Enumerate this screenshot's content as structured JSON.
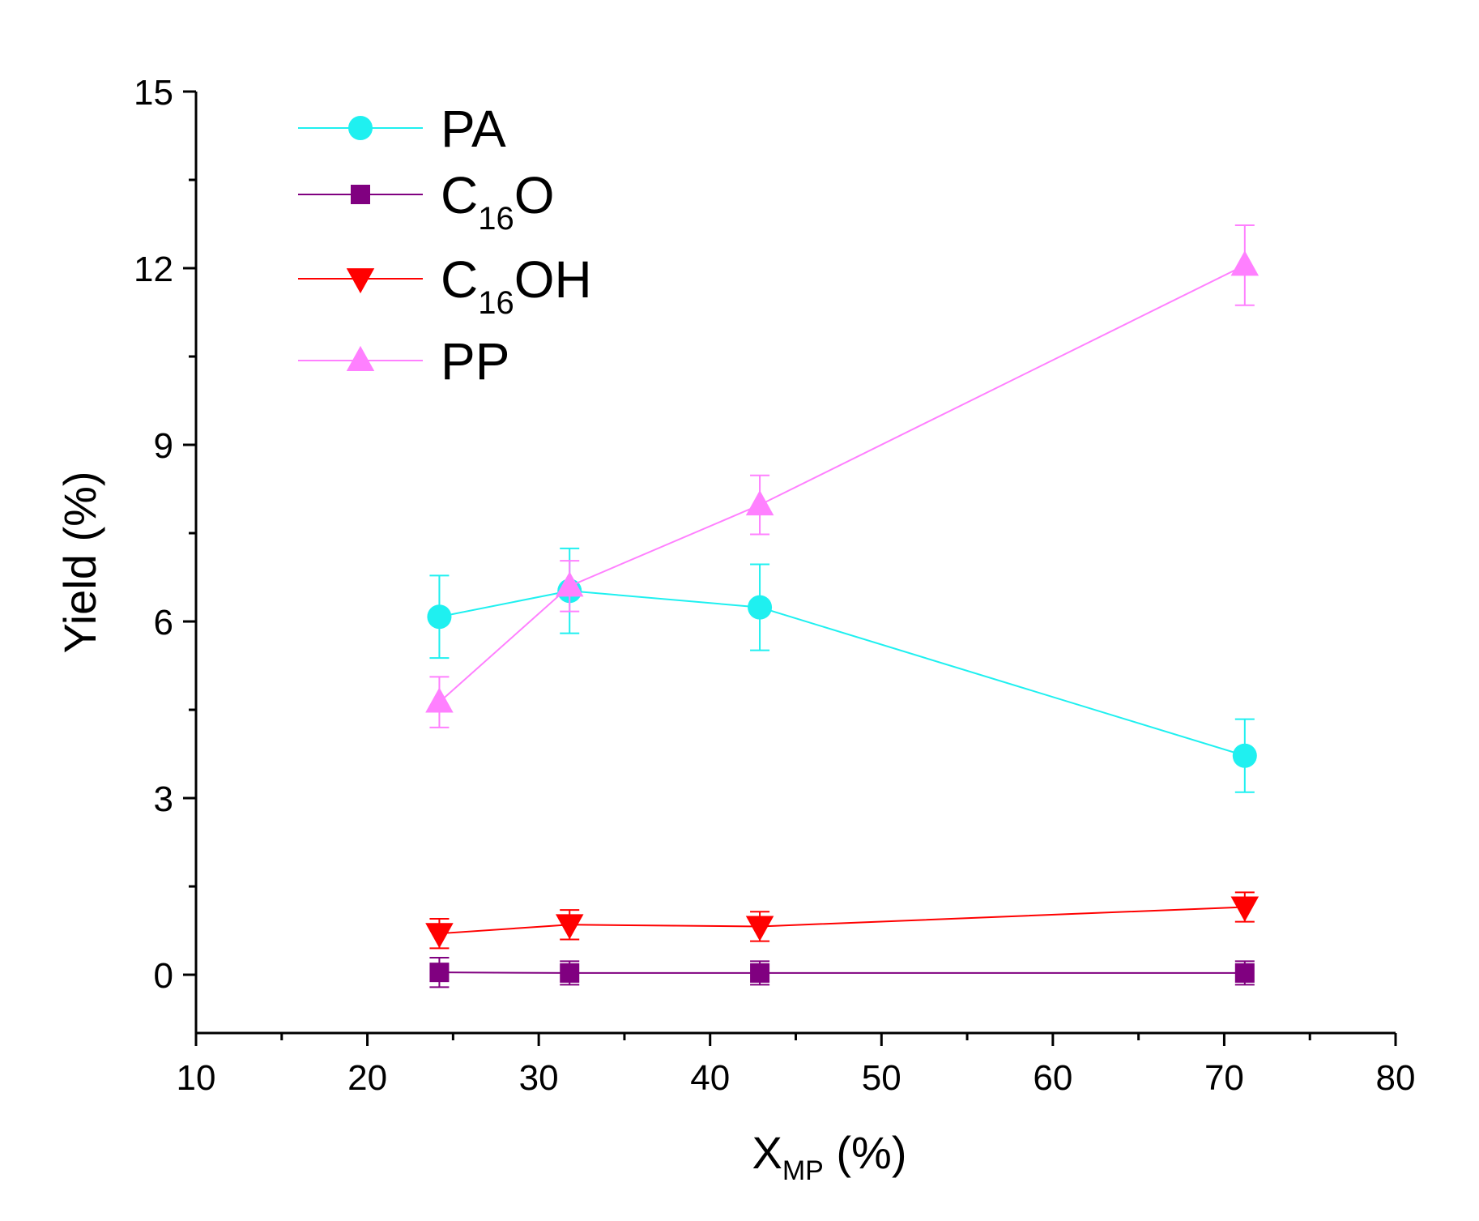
{
  "chart_data": {
    "type": "line",
    "xlabel": {
      "main": "X",
      "sub": "MP",
      "suffix": " (%)"
    },
    "ylabel": "Yield (%)",
    "xlim": [
      10,
      80
    ],
    "ylim": [
      -0.99,
      15
    ],
    "x_ticks": [
      10,
      20,
      30,
      40,
      50,
      60,
      70,
      80
    ],
    "y_ticks": [
      0,
      3,
      6,
      9,
      12,
      15
    ],
    "x_minor_step": 5,
    "y_minor_step": 1.5,
    "grid": false,
    "legend_position": "top-left",
    "series": [
      {
        "name": "PA",
        "name_parts": {
          "main": "PA",
          "sub": "",
          "suffix": ""
        },
        "marker": "circle",
        "color": "#1FF0F0",
        "x": [
          24.2,
          31.8,
          42.9,
          71.2
        ],
        "y": [
          6.08,
          6.52,
          6.24,
          3.72
        ],
        "err": [
          0.7,
          0.72,
          0.73,
          0.62
        ]
      },
      {
        "name": "C16O",
        "name_parts": {
          "main": "C",
          "sub": "16",
          "suffix": "O"
        },
        "marker": "square",
        "color": "#800080",
        "x": [
          24.2,
          31.8,
          42.9,
          71.2
        ],
        "y": [
          0.04,
          0.03,
          0.03,
          0.03
        ],
        "err": [
          0.25,
          0.2,
          0.2,
          0.2
        ]
      },
      {
        "name": "C16OH",
        "name_parts": {
          "main": "C",
          "sub": "16",
          "suffix": "OH"
        },
        "marker": "triangle-down",
        "color": "#FF0000",
        "x": [
          24.2,
          31.8,
          42.9,
          71.2
        ],
        "y": [
          0.7,
          0.85,
          0.82,
          1.15
        ],
        "err": [
          0.25,
          0.25,
          0.25,
          0.25
        ]
      },
      {
        "name": "PP",
        "name_parts": {
          "main": "PP",
          "sub": "",
          "suffix": ""
        },
        "marker": "triangle-up",
        "color": "#FF80FF",
        "x": [
          24.2,
          31.8,
          42.9,
          71.2
        ],
        "y": [
          4.63,
          6.6,
          7.98,
          12.05
        ],
        "err": [
          0.43,
          0.43,
          0.5,
          0.68
        ]
      }
    ]
  }
}
